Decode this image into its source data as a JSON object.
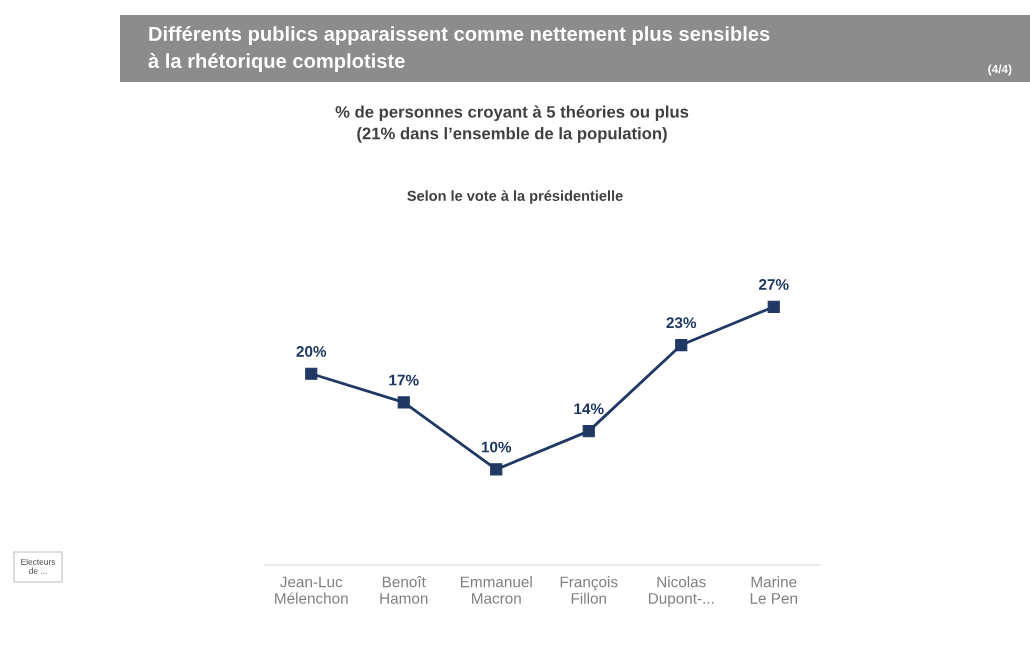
{
  "chart_data": {
    "type": "line",
    "title": "Différents publics apparaissent comme nettement plus sensibles\nà la rhétorique complotiste",
    "subtitle": "% de personnes croyant à 5 théories ou plus\n(21% dans l’ensemble de la population)",
    "annotations": [
      "(4/4)",
      "Selon le vote à la présidentielle",
      "Electeurs\nde ..."
    ],
    "categories": [
      "Jean-Luc\nMélenchon",
      "Benoît\nHamon",
      "Emmanuel\nMacron",
      "François\nFillon",
      "Nicolas\nDupont-...",
      "Marine\nLe Pen"
    ],
    "values": [
      20,
      17,
      10,
      14,
      23,
      27
    ],
    "value_labels": [
      "20%",
      "17%",
      "10%",
      "14%",
      "23%",
      "27%"
    ],
    "color": "#1f3864",
    "marker": "square",
    "line_style": "solid",
    "grid": false,
    "legend": false
  }
}
